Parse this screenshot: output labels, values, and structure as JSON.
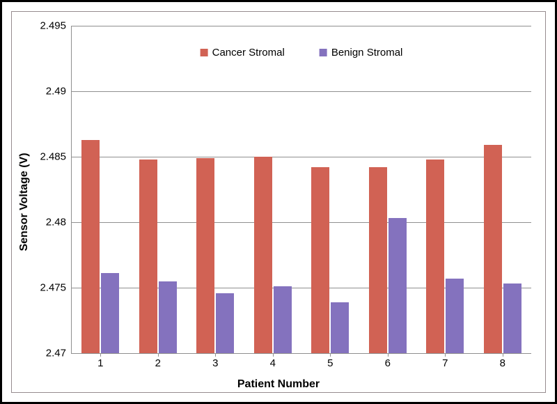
{
  "chart": {
    "type": "bar",
    "categories": [
      "1",
      "2",
      "3",
      "4",
      "5",
      "6",
      "7",
      "8"
    ],
    "series": [
      {
        "name": "Cancer Stromal",
        "color": "#d16254",
        "values": [
          2.4863,
          2.4848,
          2.4849,
          2.485,
          2.4842,
          2.4842,
          2.4848,
          2.4859
        ]
      },
      {
        "name": "Benign Stromal",
        "color": "#8472be",
        "values": [
          2.4761,
          2.4755,
          2.4746,
          2.4751,
          2.4739,
          2.4803,
          2.4757,
          2.4753
        ]
      }
    ],
    "xlabel": "Patient Number",
    "ylabel": "Sensor Voltage (V)",
    "ylim": [
      2.47,
      2.495
    ],
    "ytick_step": 0.005,
    "background_color": "#ffffff",
    "grid_color": "#8f8f8f",
    "frame_border_color": "#968b8e",
    "outer_border_color": "#000000",
    "axis_color": "#8f8f8f",
    "tick_font_size": 15,
    "label_font_size": 16,
    "label_font_weight": "bold",
    "legend_font_size": 15,
    "bar_group_gap": 0.35,
    "bar_inner_gap": 0.02
  }
}
